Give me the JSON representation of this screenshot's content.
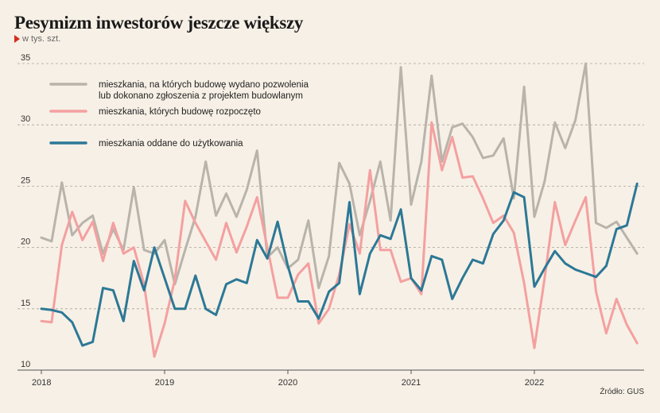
{
  "header": {
    "title": "Pesymizm inwestorów jeszcze większy",
    "unit": "w tys. szt."
  },
  "source": "Źródło: GUS",
  "colors": {
    "permits": "#b8b4ab",
    "started": "#f4a0a0",
    "completed": "#2c7896",
    "grid": "#a9a49a",
    "accent": "#d52b1e"
  },
  "chart_data": {
    "type": "line",
    "title": "Pesymizm inwestorów jeszcze większy",
    "ylabel": "w tys. szt.",
    "ylim": [
      10,
      35
    ],
    "yticks": [
      10,
      15,
      20,
      25,
      30,
      35
    ],
    "x_start": "2018-01",
    "x_labels": [
      "2018",
      "2019",
      "2020",
      "2021",
      "2022"
    ],
    "grid": "horizontal dashed",
    "legend_placement": "top-left",
    "series": [
      {
        "name": "mieszkania, na których budowę wydano pozwolenia\nlub dokonano zgłoszenia z projektem budowlanym",
        "color": "#b8b4ab",
        "values": [
          20.8,
          20.5,
          25.3,
          21.0,
          22.0,
          22.6,
          19.5,
          21.5,
          19.8,
          24.9,
          19.8,
          19.5,
          20.6,
          17.0,
          19.8,
          22.5,
          27.0,
          22.6,
          24.4,
          22.5,
          24.7,
          27.9,
          19.2,
          20.0,
          18.3,
          19.0,
          22.2,
          16.7,
          19.3,
          26.9,
          25.2,
          21.0,
          23.8,
          27.0,
          22.2,
          34.7,
          23.5,
          27.0,
          34.0,
          27.0,
          29.8,
          30.1,
          29.0,
          27.3,
          27.5,
          28.9,
          24.0,
          33.1,
          22.5,
          25.4,
          30.2,
          28.1,
          30.4,
          35.0,
          22.0,
          21.6,
          22.1,
          20.8,
          19.5
        ]
      },
      {
        "name": "mieszkania, których budowę rozpoczęto",
        "color": "#f4a0a0",
        "values": [
          14.0,
          13.9,
          20.2,
          22.9,
          20.6,
          22.1,
          18.9,
          22.0,
          19.5,
          20.0,
          17.0,
          11.1,
          13.8,
          17.4,
          23.8,
          22.0,
          20.5,
          19.0,
          22.0,
          19.6,
          21.7,
          24.1,
          20.0,
          15.9,
          15.9,
          17.8,
          18.7,
          13.8,
          15.0,
          17.8,
          21.9,
          19.5,
          26.3,
          19.8,
          19.8,
          17.2,
          17.5,
          16.2,
          30.2,
          26.3,
          29.0,
          25.7,
          25.8,
          24.0,
          22.0,
          22.6,
          21.2,
          17.1,
          11.8,
          17.5,
          23.7,
          20.2,
          22.2,
          24.1,
          16.4,
          13.0,
          15.8,
          13.7,
          12.2
        ]
      },
      {
        "name": "mieszkania oddane do użytkowania",
        "color": "#2c7896",
        "values": [
          15.0,
          14.9,
          14.7,
          13.9,
          12.0,
          12.3,
          16.7,
          16.5,
          14.0,
          18.9,
          16.5,
          20.0,
          17.5,
          15.0,
          15.0,
          17.7,
          15.0,
          14.5,
          17.0,
          17.4,
          17.1,
          20.6,
          19.1,
          22.1,
          18.5,
          15.6,
          15.6,
          14.2,
          16.4,
          17.1,
          23.7,
          16.2,
          19.5,
          21.0,
          20.7,
          23.1,
          17.5,
          16.5,
          19.3,
          19.0,
          15.8,
          17.5,
          19.0,
          18.7,
          21.1,
          22.2,
          24.5,
          24.1,
          16.8,
          18.3,
          19.7,
          18.7,
          18.2,
          17.9,
          17.6,
          18.5,
          21.5,
          21.8,
          25.2
        ]
      }
    ]
  }
}
